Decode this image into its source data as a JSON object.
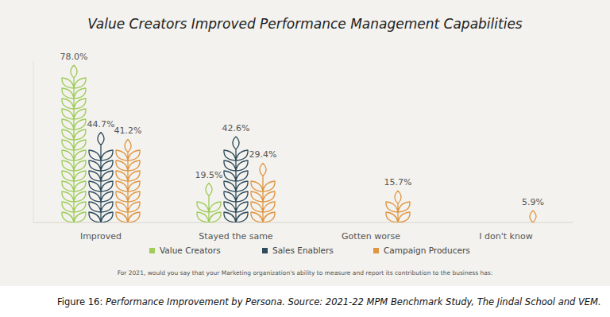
{
  "chart_data": {
    "type": "bar",
    "title": "Value Creators Improved Performance Management Capabilities",
    "categories": [
      "Improved",
      "Stayed the same",
      "Gotten worse",
      "I don't know"
    ],
    "series": [
      {
        "name": "Value Creators",
        "color": "#9fcc5a",
        "values": [
          78.0,
          19.5,
          null,
          null
        ],
        "value_labels": [
          "78.0%",
          "19.5%",
          null,
          null
        ]
      },
      {
        "name": "Sales Enablers",
        "color": "#2f4b5c",
        "values": [
          44.7,
          42.6,
          null,
          null
        ],
        "value_labels": [
          "44.7%",
          "42.6%",
          null,
          null
        ]
      },
      {
        "name": "Campaign Producers",
        "color": "#e09540",
        "values": [
          41.2,
          29.4,
          15.7,
          5.9
        ],
        "value_labels": [
          "41.2%",
          "29.4%",
          "15.7%",
          "5.9%"
        ]
      }
    ],
    "ylim": [
      0,
      80
    ],
    "yticks": [],
    "tick_labels": "x",
    "data_labels": true,
    "grid": false,
    "legend": "bottom",
    "annotations": [
      "For 2021, would you say that your Marketing organization's ability to measure and report its contribution to the business has:",
      "Figure 16:",
      "Performance Improvement by Persona.",
      "Source: 2021-22 MPM Benchmark Study, The Jindal School and VEM."
    ]
  }
}
